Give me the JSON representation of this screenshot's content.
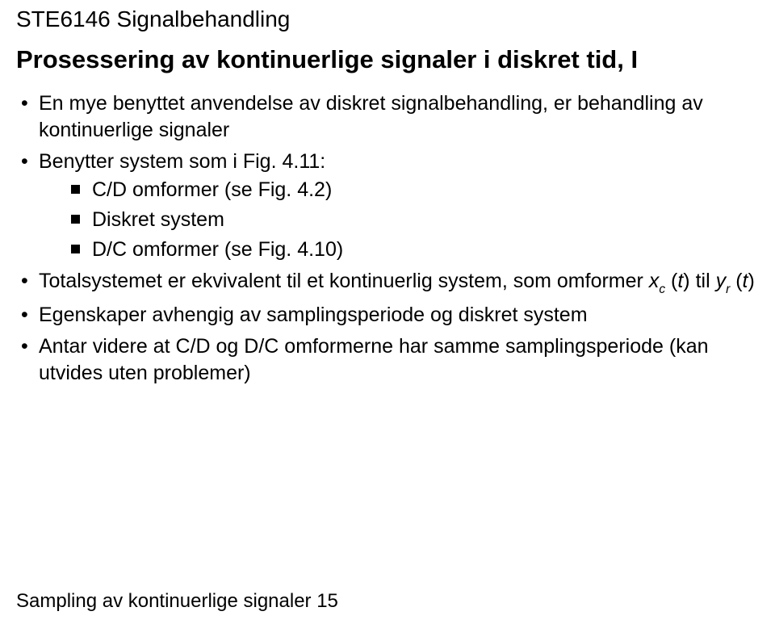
{
  "course_code": "STE6146 Signalbehandling",
  "title": {
    "main": "Prosessering av kontinuerlige signaler i diskret tid",
    "separator": ", ",
    "part": "I"
  },
  "bullets": [
    {
      "text": "En mye benyttet anvendelse av diskret signalbehandling, er behandling av kontinuerlige signaler"
    },
    {
      "text": "Benytter system som i Fig. 4.11:",
      "sub": [
        "C/D omformer (se Fig. 4.2)",
        "Diskret system",
        "D/C omformer (se Fig. 4.10)"
      ]
    },
    {
      "html": "Totalsystemet er ekvivalent til et kontinuerlig system, som omformer <span class=\"ital\">x</span><span class=\"sub\">c</span> (<span class=\"ital\">t</span>) til <span class=\"ital\">y</span><span class=\"sub\">r</span> (<span class=\"ital\">t</span>)"
    },
    {
      "text": "Egenskaper avhengig av samplingsperiode og diskret system"
    },
    {
      "text": "Antar videre at C/D og D/C omformerne har samme samplingsperiode (kan utvides uten problemer)"
    }
  ],
  "footer": "Sampling av kontinuerlige signaler 15"
}
